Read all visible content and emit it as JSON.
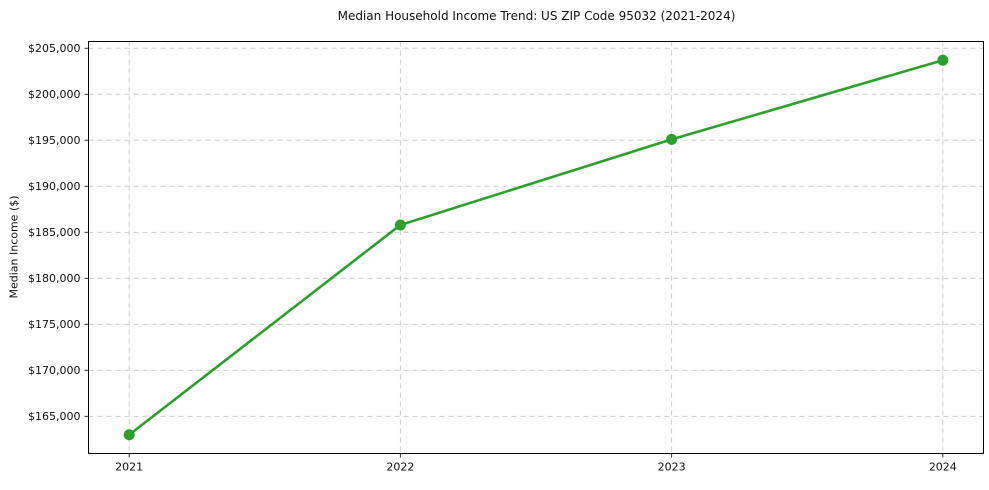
{
  "page": {
    "background": "#ffffff"
  },
  "chart_data": {
    "type": "line",
    "title": "Median Household Income Trend: US ZIP Code 95032 (2021-2024)",
    "xlabel": "",
    "ylabel": "Median Income ($)",
    "x": [
      2021,
      2022,
      2023,
      2024
    ],
    "x_tick_labels": [
      "2021",
      "2022",
      "2023",
      "2024"
    ],
    "series": [
      {
        "name": "Median Household Income",
        "values": [
          163000,
          185800,
          195100,
          203700
        ],
        "color": "#2ca02c",
        "marker": "circle",
        "marker_radius": 5.5,
        "line_width": 2.6
      }
    ],
    "y_ticks": [
      165000,
      170000,
      175000,
      180000,
      185000,
      190000,
      195000,
      200000,
      205000
    ],
    "y_tick_labels": [
      "$165,000",
      "$170,000",
      "$175,000",
      "$180,000",
      "$185,000",
      "$190,000",
      "$195,000",
      "$200,000",
      "$205,000"
    ],
    "xlim": [
      2020.85,
      2024.15
    ],
    "ylim": [
      160965,
      205735
    ],
    "grid": true,
    "grid_style": "dashed",
    "grid_color": "#cdcdcd",
    "axis_color": "#000000",
    "tick_color": "#333333",
    "text_color": "#111111",
    "legend": "none"
  }
}
